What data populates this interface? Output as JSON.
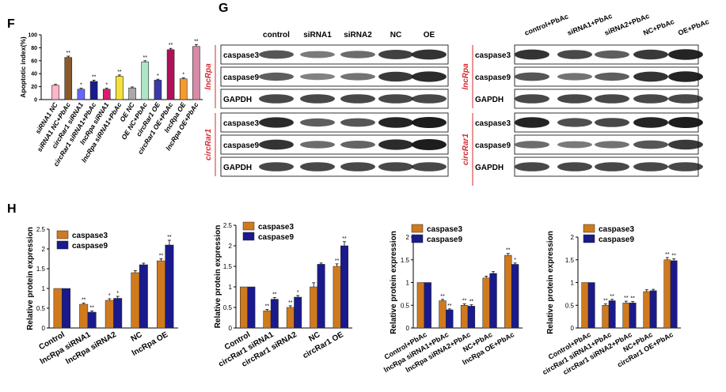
{
  "labels": {
    "F": "F",
    "G": "G",
    "H": "H"
  },
  "colors": {
    "caspase3": "#d07a1e",
    "caspase9": "#1a1a8c",
    "blot_red": "#d8282e"
  },
  "panel_G": {
    "lanes_left": [
      "control",
      "siRNA1",
      "siRNA2",
      "NC",
      "OE"
    ],
    "lanes_right": [
      "control+PbAc",
      "siRNA1+PbAc",
      "siRNA2+PbAc",
      "NC+PbAc",
      "OE+PbAc"
    ],
    "group_top": "lncRpa",
    "group_bottom": "circRar1",
    "rows": [
      "caspase3",
      "caspase9",
      "GAPDH"
    ]
  },
  "chart_data": [
    {
      "id": "F",
      "type": "bar",
      "ylabel": "Apoptotic index(%)",
      "ylim": [
        0,
        100
      ],
      "yticks": [
        0,
        20,
        40,
        60,
        80,
        100
      ],
      "categories": [
        "siRNA1 NC",
        "siRNA1 NC+PbAc",
        "circRar1 siRNA1",
        "circRar1 siRNA1+PbAc",
        "lncRpa siRNA1",
        "lncRpa siRNA1+PbAc",
        "OE NC",
        "OE NC+PbAc",
        "circRar1 OE",
        "circRar1 OE+PbAc",
        "lncRpa OE",
        "lncRpa OE+PbAc"
      ],
      "values": [
        22,
        65,
        16,
        28,
        16,
        36,
        18,
        58,
        30,
        77,
        32,
        82
      ],
      "errors": [
        1.5,
        2,
        1.5,
        2,
        1.5,
        2,
        1.5,
        2,
        1.5,
        2,
        1.5,
        3
      ],
      "sig": [
        "",
        "**",
        "*",
        "**",
        "*",
        "**",
        "",
        "**",
        "*",
        "**",
        "*",
        "**"
      ],
      "colors": [
        "#ffb6c8",
        "#8b5a2b",
        "#6666ff",
        "#1a1a8c",
        "#e0186e",
        "#f4e13a",
        "#aaaaaa",
        "#aee6c8",
        "#3a3aa8",
        "#b0105a",
        "#f59a2c",
        "#d98aa8"
      ]
    },
    {
      "id": "H1",
      "type": "bar",
      "ylabel": "Relative protein expression",
      "ylim": [
        0,
        2.5
      ],
      "yticks": [
        0,
        0.5,
        1.0,
        1.5,
        2.0,
        2.5
      ],
      "categories": [
        "Control",
        "lncRpa siRNA1",
        "lncRpa siRNA2",
        "NC",
        "lncRpa OE"
      ],
      "series": [
        {
          "name": "caspase3",
          "values": [
            1.0,
            0.6,
            0.7,
            1.4,
            1.7
          ],
          "errors": [
            0,
            0.03,
            0.04,
            0.05,
            0.05
          ]
        },
        {
          "name": "caspase9",
          "values": [
            1.0,
            0.4,
            0.75,
            1.6,
            2.1
          ],
          "errors": [
            0,
            0.03,
            0.05,
            0.04,
            0.12
          ]
        }
      ],
      "sig": [
        [
          "",
          ""
        ],
        [
          "**",
          "**"
        ],
        [
          "*",
          "*"
        ],
        [
          "",
          ""
        ],
        [
          "**",
          "**"
        ]
      ]
    },
    {
      "id": "H2",
      "type": "bar",
      "ylabel": "Relative protein expression",
      "ylim": [
        0,
        2.5
      ],
      "yticks": [
        0.0,
        0.5,
        1.0,
        1.5,
        2.0,
        2.5
      ],
      "categories": [
        "Control",
        "circRar1 siRNA1",
        "circRar1 siRNA2",
        "NC",
        "circRar1 OE"
      ],
      "series": [
        {
          "name": "caspase3",
          "values": [
            1.0,
            0.42,
            0.5,
            1.0,
            1.5
          ],
          "errors": [
            0,
            0.03,
            0.04,
            0.1,
            0.06
          ]
        },
        {
          "name": "caspase9",
          "values": [
            1.0,
            0.7,
            0.75,
            1.55,
            2.0
          ],
          "errors": [
            0,
            0.04,
            0.04,
            0.03,
            0.1
          ]
        }
      ],
      "sig": [
        [
          "",
          ""
        ],
        [
          "**",
          "**"
        ],
        [
          "**",
          "*"
        ],
        [
          "",
          ""
        ],
        [
          "**",
          "**"
        ]
      ]
    },
    {
      "id": "H3",
      "type": "bar",
      "ylabel": "Relative protein expression",
      "ylim": [
        0,
        2.0
      ],
      "yticks": [
        0.0,
        0.5,
        1.0,
        1.5,
        2.0
      ],
      "categories": [
        "Control+PbAc",
        "lncRpa siRNA1+PbAc",
        "lncRpa siRNA2+PbAc",
        "NC+PbAc",
        "lncRpa OE+PbAc"
      ],
      "series": [
        {
          "name": "caspase3",
          "values": [
            1.0,
            0.6,
            0.5,
            1.1,
            1.6
          ],
          "errors": [
            0,
            0.03,
            0.03,
            0.04,
            0.04
          ]
        },
        {
          "name": "caspase9",
          "values": [
            1.0,
            0.4,
            0.48,
            1.2,
            1.4
          ],
          "errors": [
            0,
            0.02,
            0.03,
            0.04,
            0.03
          ]
        }
      ],
      "sig": [
        [
          "",
          ""
        ],
        [
          "**",
          "**"
        ],
        [
          "**",
          "**"
        ],
        [
          "",
          ""
        ],
        [
          "**",
          "*"
        ]
      ]
    },
    {
      "id": "H4",
      "type": "bar",
      "ylabel": "Relative protein expression",
      "ylim": [
        0,
        2.0
      ],
      "yticks": [
        0.0,
        0.5,
        1.0,
        1.5,
        2.0
      ],
      "categories": [
        "Control+PbAc",
        "circRar1 siRNA1+PbAc",
        "circRar1 siRNA2+PbAc",
        "NC+PbAc",
        "circRar1 OE+PbAc"
      ],
      "series": [
        {
          "name": "caspase3",
          "values": [
            1.0,
            0.5,
            0.55,
            0.8,
            1.5
          ],
          "errors": [
            0,
            0.03,
            0.04,
            0.04,
            0.05
          ]
        },
        {
          "name": "caspase9",
          "values": [
            1.0,
            0.6,
            0.55,
            0.82,
            1.48
          ],
          "errors": [
            0,
            0.03,
            0.03,
            0.03,
            0.04
          ]
        }
      ],
      "sig": [
        [
          "",
          ""
        ],
        [
          "**",
          "**"
        ],
        [
          "**",
          "**"
        ],
        [
          "",
          ""
        ],
        [
          "**",
          "**"
        ]
      ]
    }
  ]
}
